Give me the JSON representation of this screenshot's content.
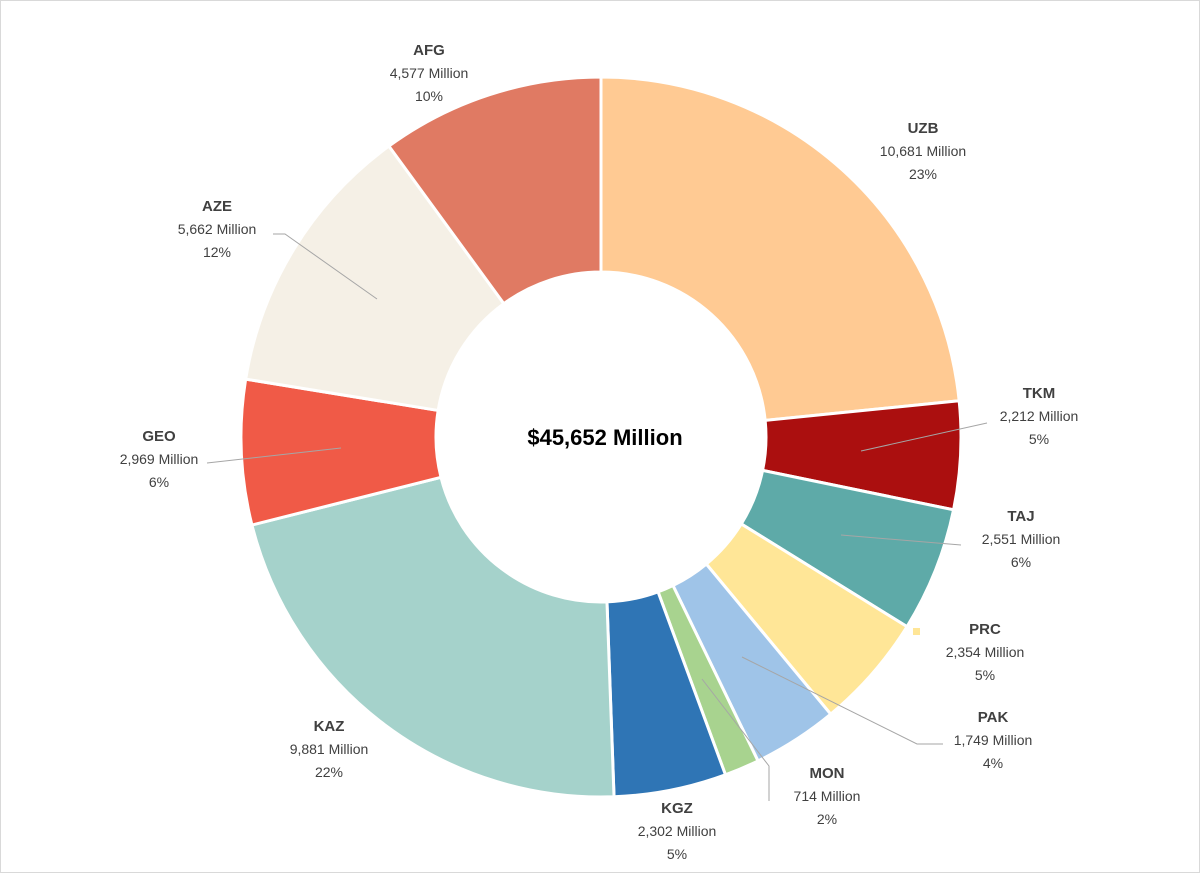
{
  "chart_data": {
    "type": "pie",
    "variant": "donut",
    "center_label": "$45,652 Million",
    "unit_suffix": "Million",
    "slices": [
      {
        "label": "UZB",
        "value": 10681,
        "value_text": "10,681 Million",
        "percent_text": "23%",
        "color": "#FFCA93"
      },
      {
        "label": "TKM",
        "value": 2212,
        "value_text": "2,212 Million",
        "percent_text": "5%",
        "color": "#AB0F0F"
      },
      {
        "label": "TAJ",
        "value": 2551,
        "value_text": "2,551 Million",
        "percent_text": "6%",
        "color": "#5EAAA8"
      },
      {
        "label": "PRC",
        "value": 2354,
        "value_text": "2,354 Million",
        "percent_text": "5%",
        "color": "#FFE697"
      },
      {
        "label": "PAK",
        "value": 1749,
        "value_text": "1,749 Million",
        "percent_text": "4%",
        "color": "#9FC4E8"
      },
      {
        "label": "MON",
        "value": 714,
        "value_text": "714 Million",
        "percent_text": "2%",
        "color": "#A8D38F"
      },
      {
        "label": "KGZ",
        "value": 2302,
        "value_text": "2,302 Million",
        "percent_text": "5%",
        "color": "#2F75B5"
      },
      {
        "label": "KAZ",
        "value": 9881,
        "value_text": "9,881 Million",
        "percent_text": "22%",
        "color": "#A5D2CB"
      },
      {
        "label": "GEO",
        "value": 2969,
        "value_text": "2,969 Million",
        "percent_text": "6%",
        "color": "#F05A47"
      },
      {
        "label": "AZE",
        "value": 5662,
        "value_text": "5,662 Million",
        "percent_text": "12%",
        "color": "#F5F0E6"
      },
      {
        "label": "AFG",
        "value": 4577,
        "value_text": "4,577 Million",
        "percent_text": "10%",
        "color": "#E07A63"
      }
    ]
  }
}
